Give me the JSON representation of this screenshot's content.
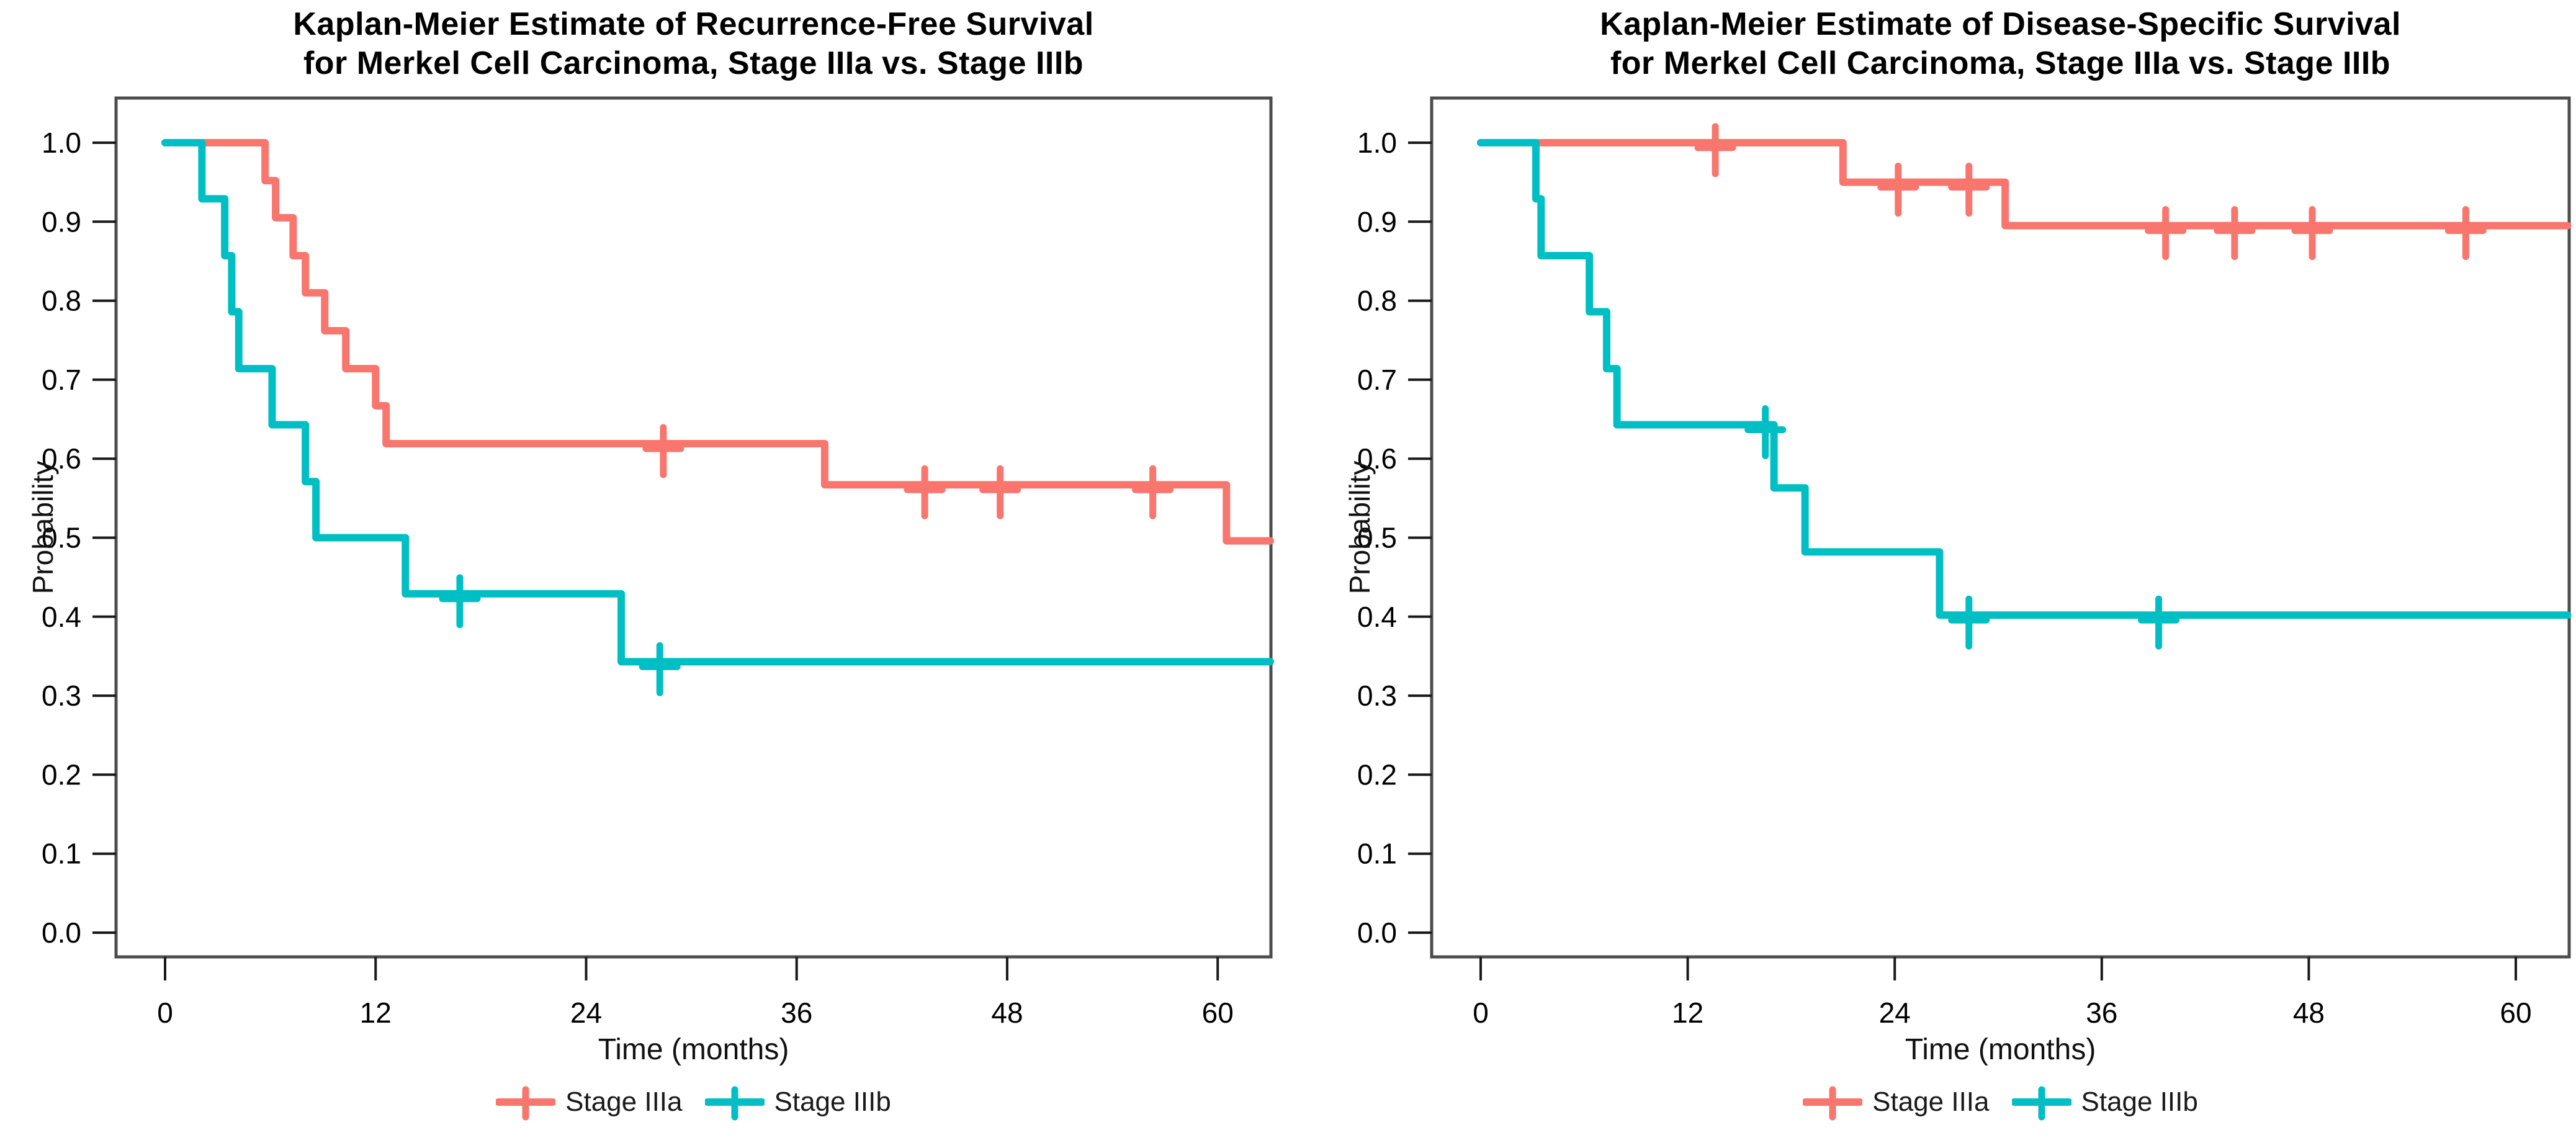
{
  "colors": {
    "stage_iiia": "#F8766D",
    "stage_iiib": "#00BFC4",
    "axis": "#4d4d4d",
    "tick": "#1a1a1a",
    "text": "#000000"
  },
  "legend": {
    "items": [
      {
        "label": "Stage IIIa",
        "color_key": "stage_iiia"
      },
      {
        "label": "Stage IIIb",
        "color_key": "stage_iiib"
      }
    ]
  },
  "chart_data": [
    {
      "type": "line",
      "subtype": "kaplan-meier-step",
      "title_line1": "Kaplan-Meier Estimate of Recurrence-Free Survival",
      "title_line2": "for Merkel Cell Carcinoma, Stage IIIa vs. Stage IIIb",
      "xlabel": "Time (months)",
      "ylabel": "Probability",
      "x_ticks": [
        0,
        12,
        24,
        36,
        48,
        60
      ],
      "y_ticks": [
        1.0,
        0.9,
        0.8,
        0.7,
        0.6,
        0.5,
        0.4,
        0.3,
        0.2,
        0.1,
        0.0
      ],
      "xlim": [
        -2.9,
        63.2
      ],
      "ylim": [
        -0.031,
        1.058
      ],
      "x_end": 63,
      "grid": "off",
      "legend_position": "bottom",
      "series": [
        {
          "name": "Stage IIIa",
          "color_key": "stage_iiia",
          "steps": [
            [
              0,
              1.0
            ],
            [
              5.7,
              0.952
            ],
            [
              6.3,
              0.905
            ],
            [
              7.3,
              0.857
            ],
            [
              8.0,
              0.81
            ],
            [
              9.1,
              0.762
            ],
            [
              10.3,
              0.714
            ],
            [
              12.0,
              0.667
            ],
            [
              12.6,
              0.619
            ],
            [
              37.6,
              0.567
            ],
            [
              60.5,
              0.496
            ]
          ],
          "censors": [
            [
              28.4,
              0.619
            ],
            [
              43.3,
              0.567
            ],
            [
              47.6,
              0.567
            ],
            [
              56.3,
              0.567
            ]
          ]
        },
        {
          "name": "Stage IIIb",
          "color_key": "stage_iiib",
          "steps": [
            [
              0,
              1.0
            ],
            [
              2.1,
              0.929
            ],
            [
              3.4,
              0.857
            ],
            [
              3.8,
              0.786
            ],
            [
              4.2,
              0.714
            ],
            [
              6.1,
              0.643
            ],
            [
              8.0,
              0.571
            ],
            [
              8.6,
              0.5
            ],
            [
              13.7,
              0.429
            ],
            [
              26.0,
              0.343
            ]
          ],
          "censors": [
            [
              16.8,
              0.429
            ],
            [
              28.2,
              0.343
            ]
          ]
        }
      ]
    },
    {
      "type": "line",
      "subtype": "kaplan-meier-step",
      "title_line1": "Kaplan-Meier Estimate of Disease-Specific Survival",
      "title_line2": "for Merkel Cell Carcinoma, Stage IIIa vs. Stage IIIb",
      "xlabel": "Time (months)",
      "ylabel": "Probability",
      "x_ticks": [
        0,
        12,
        24,
        36,
        48,
        60
      ],
      "y_ticks": [
        1.0,
        0.9,
        0.8,
        0.7,
        0.6,
        0.5,
        0.4,
        0.3,
        0.2,
        0.1,
        0.0
      ],
      "xlim": [
        -2.9,
        63.2
      ],
      "ylim": [
        -0.031,
        1.058
      ],
      "x_end": 63,
      "grid": "off",
      "legend_position": "bottom",
      "series": [
        {
          "name": "Stage IIIa",
          "color_key": "stage_iiia",
          "steps": [
            [
              0,
              1.0
            ],
            [
              21.0,
              0.95
            ],
            [
              30.4,
              0.895
            ]
          ],
          "censors": [
            [
              13.6,
              1.0
            ],
            [
              24.2,
              0.95
            ],
            [
              28.3,
              0.95
            ],
            [
              39.7,
              0.895
            ],
            [
              43.7,
              0.895
            ],
            [
              48.2,
              0.895
            ],
            [
              57.1,
              0.895
            ]
          ]
        },
        {
          "name": "Stage IIIb",
          "color_key": "stage_iiib",
          "steps": [
            [
              0,
              1.0
            ],
            [
              3.2,
              0.929
            ],
            [
              3.5,
              0.857
            ],
            [
              6.3,
              0.786
            ],
            [
              7.3,
              0.714
            ],
            [
              7.9,
              0.643
            ],
            [
              17.0,
              0.563
            ],
            [
              18.8,
              0.482
            ],
            [
              26.6,
              0.402
            ]
          ],
          "censors": [
            [
              16.5,
              0.643
            ],
            [
              28.3,
              0.402
            ],
            [
              39.3,
              0.402
            ]
          ]
        }
      ]
    }
  ]
}
